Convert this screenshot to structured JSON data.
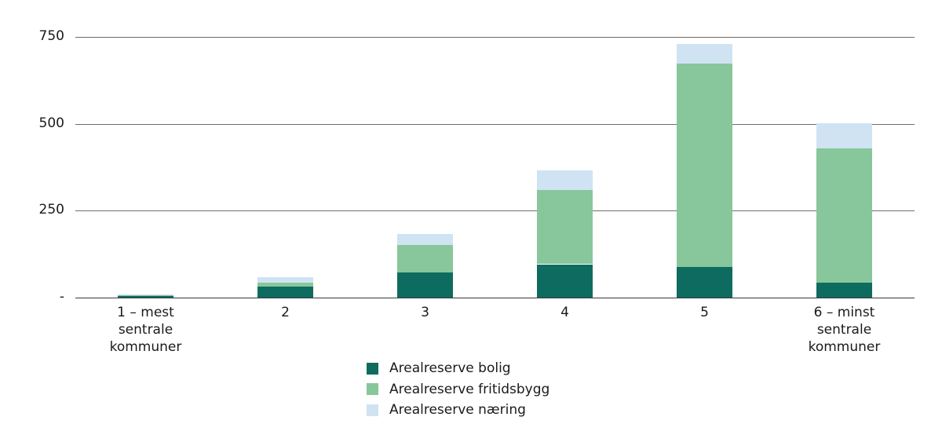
{
  "chart_data": {
    "type": "bar",
    "stacked": true,
    "title": "",
    "xlabel": "",
    "ylabel": "",
    "ylim": [
      0,
      750
    ],
    "yticks": [
      {
        "value": 750,
        "label": "750"
      },
      {
        "value": 500,
        "label": "500"
      },
      {
        "value": 250,
        "label": "250"
      },
      {
        "value": 0,
        "label": "-"
      }
    ],
    "grid": true,
    "legend_position": "bottom-center",
    "categories": [
      "1 – mest sentrale kommuner",
      "2",
      "3",
      "4",
      "5",
      "6 – minst sentrale kommuner"
    ],
    "category_lines": [
      [
        "1 – mest",
        "sentrale",
        "kommuner"
      ],
      [
        "2"
      ],
      [
        "3"
      ],
      [
        "4"
      ],
      [
        "5"
      ],
      [
        "6 – minst",
        "sentrale",
        "kommuner"
      ]
    ],
    "series": [
      {
        "name": "Arealreserve bolig",
        "color": "#0e6b5f",
        "values": [
          5,
          32,
          73,
          96,
          87,
          44
        ]
      },
      {
        "name": "Arealreserve fritidsbygg",
        "color": "#88c69b",
        "values": [
          1,
          11,
          78,
          214,
          587,
          385
        ]
      },
      {
        "name": "Arealreserve næring",
        "color": "#cfe3f3",
        "values": [
          2,
          16,
          32,
          56,
          56,
          72
        ]
      }
    ]
  }
}
